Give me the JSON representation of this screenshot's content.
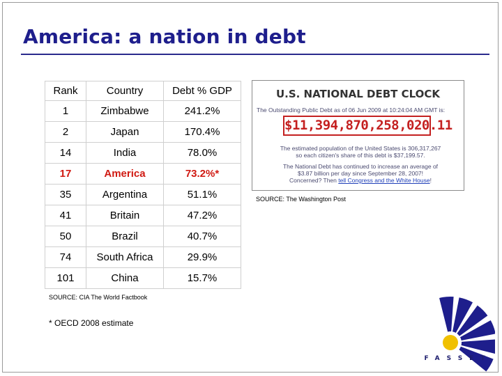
{
  "slide": {
    "title": "America: a nation in debt"
  },
  "table": {
    "headers": [
      "Rank",
      "Country",
      "Debt % GDP"
    ],
    "rows": [
      {
        "rank": "1",
        "country": "Zimbabwe",
        "debt": "241.2%"
      },
      {
        "rank": "2",
        "country": "Japan",
        "debt": "170.4%"
      },
      {
        "rank": "14",
        "country": "India",
        "debt": "78.0%"
      },
      {
        "rank": "17",
        "country": "America",
        "debt": "73.2%*"
      },
      {
        "rank": "35",
        "country": "Argentina",
        "debt": "51.1%"
      },
      {
        "rank": "41",
        "country": "Britain",
        "debt": "47.2%"
      },
      {
        "rank": "50",
        "country": "Brazil",
        "debt": "40.7%"
      },
      {
        "rank": "74",
        "country": "South Africa",
        "debt": "29.9%"
      },
      {
        "rank": "101",
        "country": "China",
        "debt": "15.7%"
      }
    ],
    "highlight_color": "#d01a12",
    "source": "SOURCE: CIA The World Factbook",
    "note": "* OECD 2008 estimate"
  },
  "debt_clock": {
    "title": "U.S. NATIONAL DEBT CLOCK",
    "line1": "The Outstanding Public Debt as of 06 Jun 2009 at 10:24:04 AM GMT is:",
    "amount": "$11,394,870,258,020.11",
    "population_line1": "The estimated population of the United States is 306,317,267",
    "population_line2": "so each citizen's share of this debt is $37,199.57.",
    "increase_line1": "The National Debt has continued to increase an average of",
    "increase_line2": "$3.87 billion per day since September 28, 2007!",
    "concerned": "Concerned? Then",
    "link_text": "tell Congress and the White House",
    "link_end": "!",
    "amount_color": "#c42020",
    "source": "SOURCE: The Washington Post"
  },
  "logo": {
    "text": "FASSET",
    "primary_color": "#1e1e8c",
    "accent_color": "#f0c000"
  }
}
